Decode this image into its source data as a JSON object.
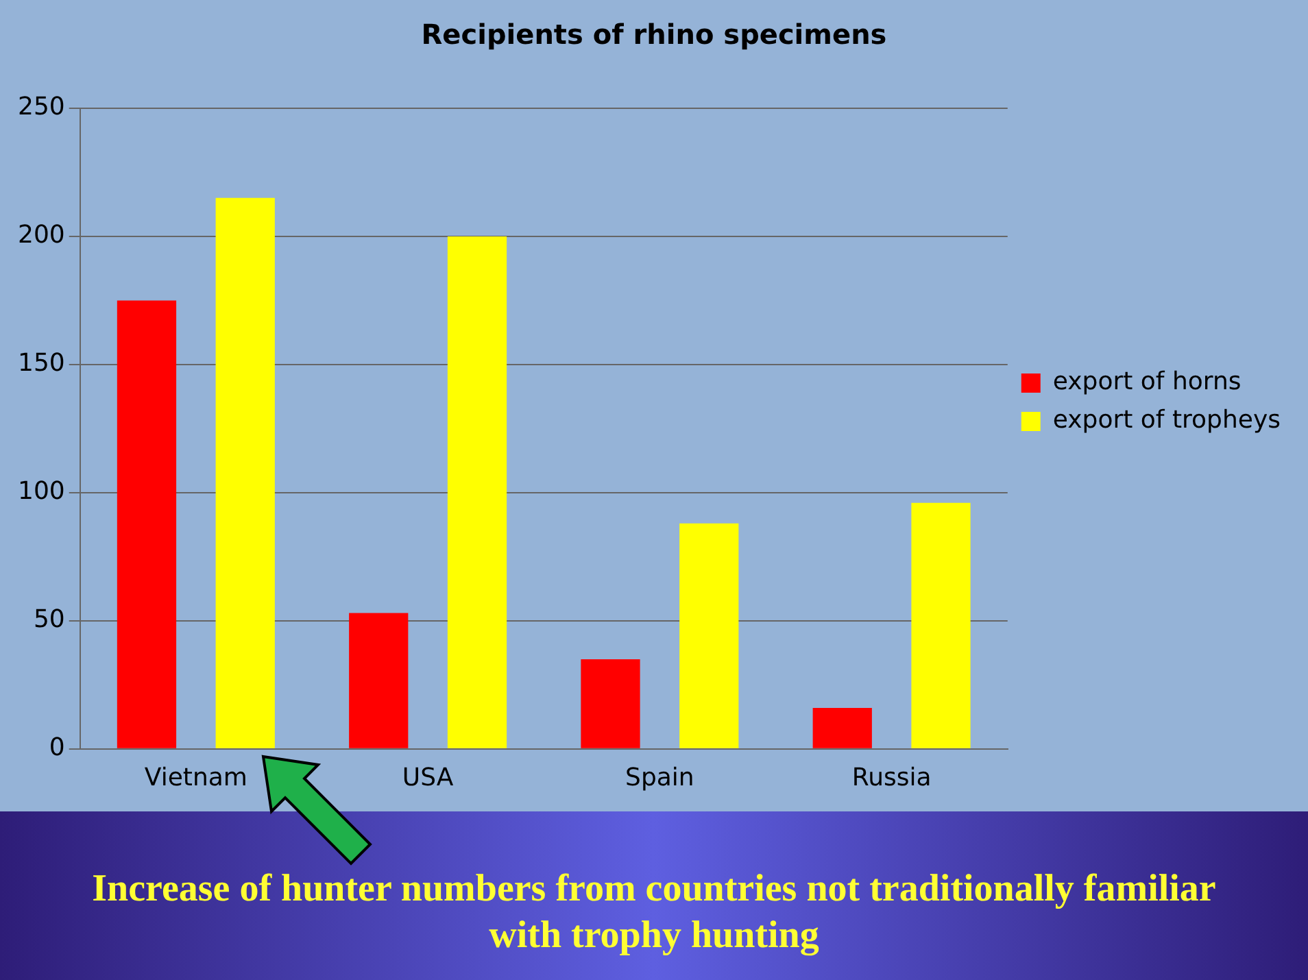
{
  "chart_data": {
    "type": "bar",
    "title": "Recipients of rhino specimens",
    "categories": [
      "Vietnam",
      "USA",
      "Spain",
      "Russia"
    ],
    "series": [
      {
        "name": "export of horns",
        "color": "#ff0000",
        "values": [
          175,
          53,
          35,
          16
        ]
      },
      {
        "name": "export of tropheys",
        "color": "#ffff00",
        "values": [
          215,
          200,
          88,
          96
        ]
      }
    ],
    "ylim": [
      0,
      250
    ],
    "yticks": [
      0,
      50,
      100,
      150,
      200,
      250
    ],
    "grid": "y",
    "legend": "right",
    "annotations": [
      "Increase of  hunter numbers from countries not traditionally familiar with trophy hunting"
    ]
  }
}
